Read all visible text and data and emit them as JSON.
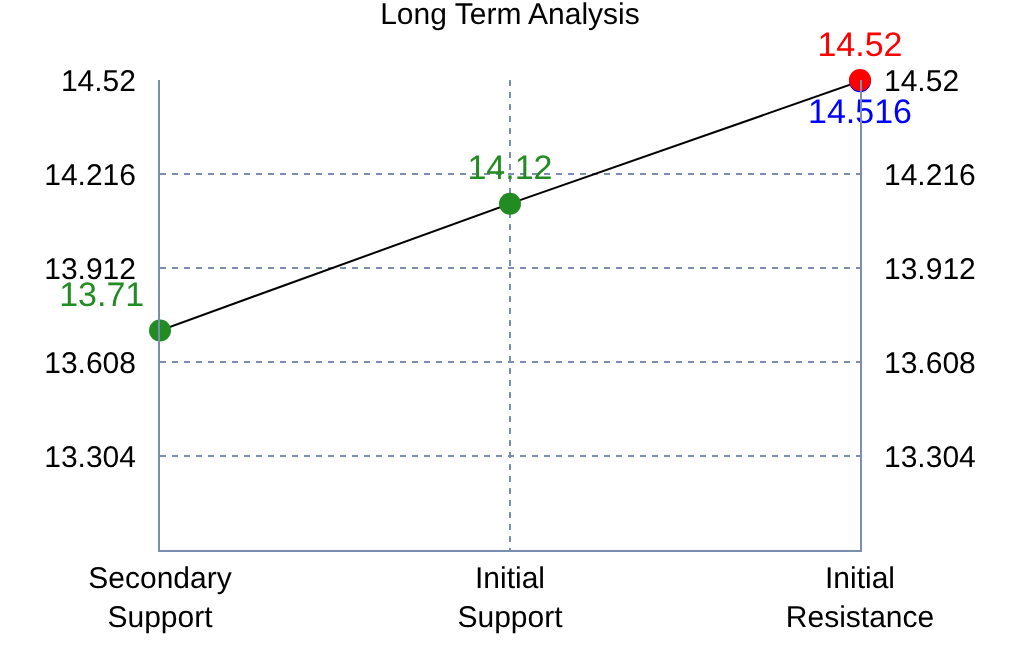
{
  "chart_data": {
    "type": "line",
    "title": "Long Term Analysis",
    "categories": [
      "Secondary Support",
      "Initial Support",
      "Initial Resistance"
    ],
    "series": [
      {
        "color": "#000000",
        "colors": [
          "#228b22",
          "#228b22",
          "#0000ff"
        ],
        "values": [
          13.71,
          14.12,
          14.516
        ],
        "value_labels": [
          "13.71",
          "14.12",
          "14.516"
        ]
      },
      {
        "type": "scatter",
        "color": "#ff0000",
        "values": [
          null,
          null,
          14.52
        ],
        "value_labels": [
          null,
          null,
          "14.52"
        ]
      }
    ],
    "marker": "circle",
    "ylim": [
      13.0,
      14.52
    ],
    "yticks": [
      13.304,
      13.608,
      13.912,
      14.216,
      14.52
    ],
    "y2lim": [
      13.0,
      14.52
    ],
    "y2ticks": [
      13.304,
      13.608,
      13.912,
      14.216,
      14.52
    ],
    "grid": true
  }
}
